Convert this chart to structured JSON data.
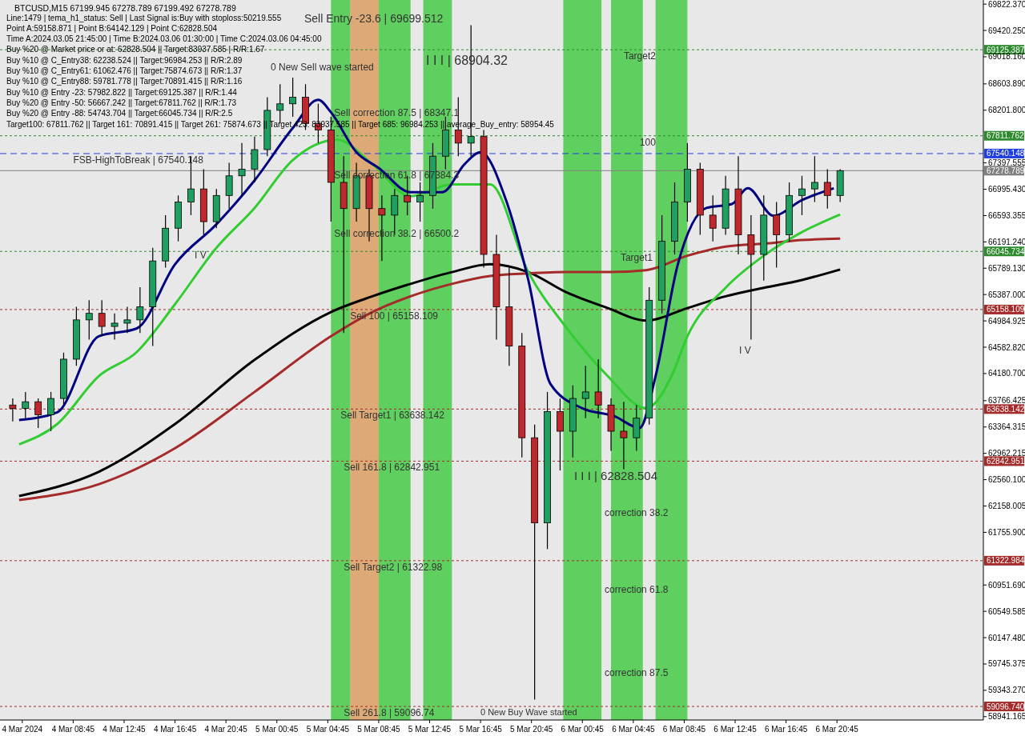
{
  "chart_data": {
    "type": "candlestick",
    "title": "BTCUSD,M15  67199.945 67278.789 67199.492 67278.789",
    "x": [
      "2024-03-04T04:00",
      "2024-03-04T05:00",
      "2024-03-04T06:00",
      "2024-03-04T07:00",
      "2024-03-04T08:00",
      "2024-03-04T09:00",
      "2024-03-04T10:00",
      "2024-03-04T11:00",
      "2024-03-04T12:00",
      "2024-03-04T13:00",
      "2024-03-04T14:00",
      "2024-03-04T15:00",
      "2024-03-04T16:00",
      "2024-03-04T17:00",
      "2024-03-04T18:00",
      "2024-03-04T19:00",
      "2024-03-04T20:00",
      "2024-03-04T21:00",
      "2024-03-04T22:00",
      "2024-03-04T23:00",
      "2024-03-05T00:00",
      "2024-03-05T01:00",
      "2024-03-05T02:00",
      "2024-03-05T03:00",
      "2024-03-05T04:00",
      "2024-03-05T05:00",
      "2024-03-05T06:00",
      "2024-03-05T07:00",
      "2024-03-05T08:00",
      "2024-03-05T09:00",
      "2024-03-05T10:00",
      "2024-03-05T11:00",
      "2024-03-05T12:00",
      "2024-03-05T13:00",
      "2024-03-05T14:00",
      "2024-03-05T15:00",
      "2024-03-05T16:00",
      "2024-03-05T17:00",
      "2024-03-05T18:00",
      "2024-03-05T19:00",
      "2024-03-05T20:00",
      "2024-03-05T21:00",
      "2024-03-05T22:00",
      "2024-03-05T23:00",
      "2024-03-06T00:00",
      "2024-03-06T01:00",
      "2024-03-06T02:00",
      "2024-03-06T03:00",
      "2024-03-06T04:00",
      "2024-03-06T05:00",
      "2024-03-06T06:00",
      "2024-03-06T07:00",
      "2024-03-06T08:00",
      "2024-03-06T09:00",
      "2024-03-06T10:00",
      "2024-03-06T11:00",
      "2024-03-06T12:00",
      "2024-03-06T13:00",
      "2024-03-06T14:00",
      "2024-03-06T15:00",
      "2024-03-06T16:00",
      "2024-03-06T17:00",
      "2024-03-06T18:00",
      "2024-03-06T19:00",
      "2024-03-06T20:00",
      "2024-03-06T21:00"
    ],
    "ohlc": [
      [
        63700,
        63800,
        63450,
        63650
      ],
      [
        63650,
        63900,
        63500,
        63750
      ],
      [
        63750,
        63800,
        63350,
        63550
      ],
      [
        63550,
        63900,
        63300,
        63800
      ],
      [
        63800,
        64500,
        63700,
        64400
      ],
      [
        64400,
        65200,
        64300,
        65000
      ],
      [
        65000,
        65300,
        64700,
        65100
      ],
      [
        65100,
        65300,
        64750,
        64900
      ],
      [
        64900,
        65100,
        64700,
        64950
      ],
      [
        64950,
        65200,
        64800,
        65000
      ],
      [
        65000,
        65500,
        64800,
        65200
      ],
      [
        65200,
        66100,
        64600,
        65900
      ],
      [
        65900,
        66600,
        65800,
        66400
      ],
      [
        66400,
        66900,
        66200,
        66800
      ],
      [
        66800,
        67500,
        66600,
        67000
      ],
      [
        67000,
        67300,
        66300,
        66500
      ],
      [
        66500,
        67000,
        66400,
        66900
      ],
      [
        66900,
        67400,
        66700,
        67200
      ],
      [
        67200,
        67700,
        66900,
        67300
      ],
      [
        67300,
        67800,
        67100,
        67600
      ],
      [
        67600,
        68400,
        67500,
        68200
      ],
      [
        68200,
        68600,
        68000,
        68300
      ],
      [
        68300,
        68700,
        68100,
        68400
      ],
      [
        68400,
        68600,
        67900,
        68000
      ],
      [
        68000,
        68300,
        67700,
        67900
      ],
      [
        67900,
        68100,
        66500,
        67100
      ],
      [
        67100,
        67500,
        64800,
        66700
      ],
      [
        66700,
        67400,
        66500,
        67200
      ],
      [
        67200,
        67300,
        66200,
        66700
      ],
      [
        66700,
        66900,
        65900,
        66600
      ],
      [
        66600,
        67000,
        66300,
        66900
      ],
      [
        66900,
        67200,
        66600,
        66800
      ],
      [
        66800,
        67100,
        66500,
        66900
      ],
      [
        66900,
        67700,
        66700,
        67500
      ],
      [
        67500,
        68100,
        67300,
        67900
      ],
      [
        67900,
        68400,
        67500,
        67700
      ],
      [
        67700,
        69500,
        67500,
        67800
      ],
      [
        67800,
        67900,
        65800,
        66000
      ],
      [
        66000,
        66300,
        64700,
        65200
      ],
      [
        65200,
        65800,
        64300,
        64600
      ],
      [
        64600,
        64800,
        62900,
        63200
      ],
      [
        63200,
        63400,
        59200,
        61900
      ],
      [
        61900,
        63900,
        61500,
        63600
      ],
      [
        63600,
        63800,
        62700,
        63300
      ],
      [
        63300,
        64000,
        62900,
        63800
      ],
      [
        63800,
        64300,
        63500,
        63900
      ],
      [
        63900,
        64400,
        63500,
        63700
      ],
      [
        63700,
        63800,
        63000,
        63300
      ],
      [
        63300,
        63750,
        62720,
        63200
      ],
      [
        63200,
        63700,
        63000,
        63500
      ],
      [
        63500,
        65500,
        63400,
        65300
      ],
      [
        65300,
        66600,
        65100,
        66200
      ],
      [
        66200,
        67100,
        66000,
        66800
      ],
      [
        66800,
        67700,
        66500,
        67300
      ],
      [
        67300,
        67400,
        66300,
        66600
      ],
      [
        66600,
        66900,
        66200,
        66400
      ],
      [
        66400,
        67200,
        66300,
        67000
      ],
      [
        67000,
        67500,
        66000,
        66300
      ],
      [
        66300,
        66600,
        64700,
        66000
      ],
      [
        66000,
        66900,
        65600,
        66600
      ],
      [
        66600,
        66800,
        65800,
        66300
      ],
      [
        66300,
        67100,
        66200,
        66900
      ],
      [
        66900,
        67200,
        66600,
        67000
      ],
      [
        67000,
        67500,
        66800,
        67100
      ],
      [
        67100,
        67300,
        66700,
        66900
      ],
      [
        66900,
        67300,
        66800,
        67279
      ]
    ],
    "series": [
      {
        "type": "line",
        "color": "#000000",
        "x": [
          "2024-03-04T04:30",
          "2024-03-04T10:45",
          "2024-03-04T16:45",
          "2024-03-04T23:00",
          "2024-03-05T05:00",
          "2024-03-05T08:15",
          "2024-03-05T11:15",
          "2024-03-05T14:30",
          "2024-03-05T17:30",
          "2024-03-05T20:30",
          "2024-03-05T23:30",
          "2024-03-06T02:45",
          "2024-03-06T05:45",
          "2024-03-06T09:00",
          "2024-03-06T12:00",
          "2024-03-06T15:00",
          "2024-03-06T18:00",
          "2024-03-06T21:00"
        ],
        "values": [
          62310,
          62680,
          63410,
          64390,
          65120,
          65360,
          65550,
          65730,
          65850,
          65730,
          65420,
          65180,
          64990,
          65180,
          65360,
          65490,
          65610,
          65770
        ]
      },
      {
        "type": "line",
        "color": "#a52a2a",
        "x": [
          "2024-03-04T04:30",
          "2024-03-04T10:45",
          "2024-03-04T16:45",
          "2024-03-04T23:00",
          "2024-03-05T05:00",
          "2024-03-05T08:15",
          "2024-03-05T11:15",
          "2024-03-05T14:30",
          "2024-03-05T17:30",
          "2024-03-05T20:30",
          "2024-03-05T23:30",
          "2024-03-06T02:45",
          "2024-03-06T05:45",
          "2024-03-06T09:00",
          "2024-03-06T12:00",
          "2024-03-06T15:30",
          "2024-03-06T18:00",
          "2024-03-06T21:00"
        ],
        "values": [
          62250,
          62490,
          63040,
          63900,
          64750,
          65120,
          65360,
          65550,
          65670,
          65710,
          65730,
          65730,
          65760,
          65980,
          66120,
          66170,
          66220,
          66240
        ]
      },
      {
        "type": "line",
        "color": "#33cc33",
        "x": [
          "2024-03-04T04:30",
          "2024-03-04T07:30",
          "2024-03-04T10:45",
          "2024-03-04T13:45",
          "2024-03-04T16:45",
          "2024-03-04T20:00",
          "2024-03-04T23:00",
          "2024-03-05T02:00",
          "2024-03-05T05:30",
          "2024-03-05T08:15",
          "2024-03-05T11:15",
          "2024-03-05T14:30",
          "2024-03-05T17:30",
          "2024-03-05T20:30",
          "2024-03-05T23:30",
          "2024-03-06T02:45",
          "2024-03-06T05:45",
          "2024-03-06T07:45",
          "2024-03-06T09:00",
          "2024-03-06T12:00",
          "2024-03-06T15:00",
          "2024-03-06T18:00",
          "2024-03-06T21:00"
        ],
        "values": [
          63100,
          63410,
          64140,
          64510,
          65240,
          66100,
          66710,
          67440,
          67750,
          67380,
          66890,
          67070,
          67070,
          65730,
          64880,
          64140,
          63650,
          64140,
          64750,
          65490,
          65980,
          66340,
          66610
        ]
      },
      {
        "type": "line",
        "color": "#000080",
        "x": [
          "2024-03-04T04:30",
          "2024-03-04T07:30",
          "2024-03-04T10:45",
          "2024-03-04T13:45",
          "2024-03-04T16:45",
          "2024-03-04T20:00",
          "2024-03-04T23:00",
          "2024-03-05T02:00",
          "2024-03-05T04:00",
          "2024-03-05T05:00",
          "2024-03-05T07:00",
          "2024-03-05T08:45",
          "2024-03-05T11:15",
          "2024-03-05T13:45",
          "2024-03-05T15:30",
          "2024-03-05T16:45",
          "2024-03-05T18:45",
          "2024-03-05T20:30",
          "2024-03-05T22:15",
          "2024-03-06T00:45",
          "2024-03-06T03:15",
          "2024-03-06T05:15",
          "2024-03-06T06:30",
          "2024-03-06T08:15",
          "2024-03-06T10:30",
          "2024-03-06T12:30",
          "2024-03-06T13:45",
          "2024-03-06T15:45",
          "2024-03-06T18:00",
          "2024-03-06T20:30"
        ],
        "values": [
          63470,
          63590,
          64750,
          64870,
          65850,
          66460,
          67130,
          67930,
          68360,
          68170,
          67560,
          67320,
          66950,
          66950,
          67380,
          67560,
          66830,
          65610,
          64020,
          63650,
          63530,
          63350,
          64140,
          65850,
          66710,
          66770,
          67010,
          66590,
          66830,
          67010
        ]
      }
    ],
    "xlim": [
      "2024-03-04T03:00",
      "2024-03-07T08:15"
    ],
    "xticks": [
      {
        "value": "2024-03-04T04:45",
        "label": "4 Mar 2024"
      },
      {
        "value": "2024-03-04T08:45",
        "label": "4 Mar 08:45"
      },
      {
        "value": "2024-03-04T12:45",
        "label": "4 Mar 12:45"
      },
      {
        "value": "2024-03-04T16:45",
        "label": "4 Mar 16:45"
      },
      {
        "value": "2024-03-04T20:45",
        "label": "4 Mar 20:45"
      },
      {
        "value": "2024-03-05T00:45",
        "label": "5 Mar 00:45"
      },
      {
        "value": "2024-03-05T04:45",
        "label": "5 Mar 04:45"
      },
      {
        "value": "2024-03-05T08:45",
        "label": "5 Mar 08:45"
      },
      {
        "value": "2024-03-05T12:45",
        "label": "5 Mar 12:45"
      },
      {
        "value": "2024-03-05T16:45",
        "label": "5 Mar 16:45"
      },
      {
        "value": "2024-03-05T20:45",
        "label": "5 Mar 20:45"
      },
      {
        "value": "2024-03-06T00:45",
        "label": "6 Mar 00:45"
      },
      {
        "value": "2024-03-06T04:45",
        "label": "6 Mar 04:45"
      },
      {
        "value": "2024-03-06T08:45",
        "label": "6 Mar 08:45"
      },
      {
        "value": "2024-03-06T12:45",
        "label": "6 Mar 12:45"
      },
      {
        "value": "2024-03-06T16:45",
        "label": "6 Mar 16:45"
      },
      {
        "value": "2024-03-06T20:45",
        "label": "6 Mar 20:45"
      }
    ],
    "ylim": [
      58890,
      69885
    ],
    "yticks": [
      {
        "value": 69822.37,
        "label": "69822.370"
      },
      {
        "value": 69420.25,
        "label": "69420.250"
      },
      {
        "value": 69018.16,
        "label": "69018.160"
      },
      {
        "value": 68603.89,
        "label": "68603.890"
      },
      {
        "value": 68201.8,
        "label": "68201.800"
      },
      67397.555,
      {
        "value": 66995.43,
        "label": "66995.430"
      },
      66593.355,
      {
        "value": 66191.24,
        "label": "66191.240"
      },
      {
        "value": 65789.13,
        "label": "65789.130"
      },
      {
        "value": 65387,
        "label": "65387.000"
      },
      64984.925,
      {
        "value": 64582.82,
        "label": "64582.820"
      },
      {
        "value": 64180.7,
        "label": "64180.700"
      },
      63766.425,
      63364.315,
      62962.215,
      {
        "value": 62560.1,
        "label": "62560.100"
      },
      62158.005,
      {
        "value": 61755.9,
        "label": "61755.900"
      },
      {
        "value": 60951.69,
        "label": "60951.690"
      },
      60549.585,
      {
        "value": 60147.48,
        "label": "60147.480"
      },
      59745.375,
      {
        "value": 59343.27,
        "label": "59343.270"
      },
      58941.165
    ],
    "ref_lines": [
      {
        "axis": "y",
        "value": 69125.387,
        "label": "69125.387",
        "color": "#2e8b2e",
        "line_style": "dotted"
      },
      {
        "axis": "y",
        "value": 67811.762,
        "label": "67811.762",
        "color": "#2e8b2e",
        "line_style": "dotted"
      },
      {
        "axis": "y",
        "value": 67540.148,
        "label": "67540.148",
        "color": "#1f3fe0",
        "line_style": "dashed"
      },
      {
        "axis": "y",
        "value": 67278.789,
        "label": "67278.789",
        "color": "#808080",
        "line_style": "solid"
      },
      {
        "axis": "y",
        "value": 66045.734,
        "label": "66045.734",
        "color": "#2e8b2e",
        "line_style": "dotted"
      },
      {
        "axis": "y",
        "value": 65158.109,
        "label": "65158.109",
        "color": "#a52a2a",
        "line_style": "dotted"
      },
      {
        "axis": "y",
        "value": 63638.142,
        "label": "63638.142",
        "color": "#a52a2a",
        "line_style": "dotted"
      },
      {
        "axis": "y",
        "value": 62842.951,
        "label": "62842.951",
        "color": "#a52a2a",
        "line_style": "dotted"
      },
      {
        "axis": "y",
        "value": 61322.984,
        "label": "61322.984",
        "color": "#a52a2a",
        "line_style": "dotted"
      },
      {
        "axis": "y",
        "value": 59096.74,
        "label": "59096.740",
        "color": "#a52a2a",
        "line_style": "dotted"
      }
    ],
    "bands": [
      {
        "axis": "x",
        "from": "2024-03-05T05:00",
        "to": "2024-03-05T06:30",
        "color": "#3cc83c"
      },
      {
        "axis": "x",
        "from": "2024-03-05T06:30",
        "to": "2024-03-05T08:45",
        "color": "#d99a5a"
      },
      {
        "axis": "x",
        "from": "2024-03-05T08:45",
        "to": "2024-03-05T11:15",
        "color": "#3cc83c"
      },
      {
        "axis": "x",
        "from": "2024-03-05T12:15",
        "to": "2024-03-05T14:30",
        "color": "#3cc83c"
      },
      {
        "axis": "x",
        "from": "2024-03-05T23:15",
        "to": "2024-03-06T02:15",
        "color": "#3cc83c"
      },
      {
        "axis": "x",
        "from": "2024-03-06T03:00",
        "to": "2024-03-06T05:30",
        "color": "#3cc83c"
      },
      {
        "axis": "x",
        "from": "2024-03-06T06:30",
        "to": "2024-03-06T09:00",
        "color": "#3cc83c"
      }
    ],
    "annotations": [
      "Line:1479 | tema_h1_status: Sell | Last Signal is:Buy with stoploss:50219.555",
      "Point A:59158.871 | Point B:64142.129 | Point C:62828.504",
      "Time A:2024.03.05 21:45:00 | Time B:2024.03.06 01:30:00 | Time C:2024.03.06 04:45:00",
      "Buy %20 @ Market price or at: 62828.504 || Target:83937.585 | R/R:1.67",
      "Buy %10 @ C_Entry38: 62238.524 || Target:96984.253 || R/R:2.89",
      "Buy %10 @ C_Entry61: 61062.476 || Target:75874.673 || R/R:1.37",
      "Buy %10 @ C_Entry88: 59781.778 || Target:70891.415 || R/R:1.16",
      "Buy %10 @ Entry -23: 57982.822 || Target:69125.387 || R/R:1.44",
      "Buy %20 @ Entry -50: 56667.242 || Target:67811.762 || R/R:1.73",
      "Buy %20 @ Entry -88: 54743.704 || Target:66045.734 || R/R:2.5",
      "Target100: 67811.762 || Target 161: 70891.415 || Target 261: 75874.673 || Target 423: 83937.585 || Target 685: 96984.253 || average_Buy_entry: 58954.45",
      {
        "text": "Sell correction 87.5 | 68347.1",
        "x": "2024-03-05T05:15",
        "y": 68259
      },
      {
        "text": "Sell correction 61.8 | 67384.3",
        "x": "2024-03-05T05:15",
        "y": 67306
      },
      {
        "text": "Sell correction 38.2 | 66500.2",
        "x": "2024-03-05T05:15",
        "y": 66415
      },
      {
        "text": "FSB-HighToBreak | 67540.148",
        "x": "2024-03-04T08:45",
        "y": 67540.148
      },
      {
        "text": "Target2",
        "x": "2024-03-06T04:00",
        "y": 69125.387
      },
      {
        "text": "100",
        "x": "2024-03-06T05:15",
        "y": 67811.762
      },
      {
        "text": "Target1",
        "x": "2024-03-06T03:45",
        "y": 66045.734
      },
      {
        "text": "Sell 100 | 65158.109",
        "x": "2024-03-05T06:30",
        "y": 65158.109
      },
      {
        "text": "Sell Target1 | 63638.142",
        "x": "2024-03-05T05:45",
        "y": 63638.142
      },
      {
        "text": "Sell 161.8 | 62842.951",
        "x": "2024-03-05T06:00",
        "y": 62842.951
      },
      {
        "text": "Sell Target2 | 61322.98",
        "x": "2024-03-05T06:00",
        "y": 61322.984
      },
      {
        "text": "Sell 261.8 | 59096.74",
        "x": "2024-03-05T06:00",
        "y": 59096.74
      },
      {
        "text": "correction 38.2",
        "x": "2024-03-06T02:30",
        "y": 62153
      },
      {
        "text": "correction 61.8",
        "x": "2024-03-06T02:30",
        "y": 60980
      },
      {
        "text": "correction 87.5",
        "x": "2024-03-06T02:30",
        "y": 59710
      },
      "Sell Entry -23.6 | 69699.512",
      "0 New Sell wave started",
      "I I I | 68904.32",
      "I I I | 62828.504",
      "0 New Buy Wave started",
      "I V",
      "I V"
    ]
  }
}
